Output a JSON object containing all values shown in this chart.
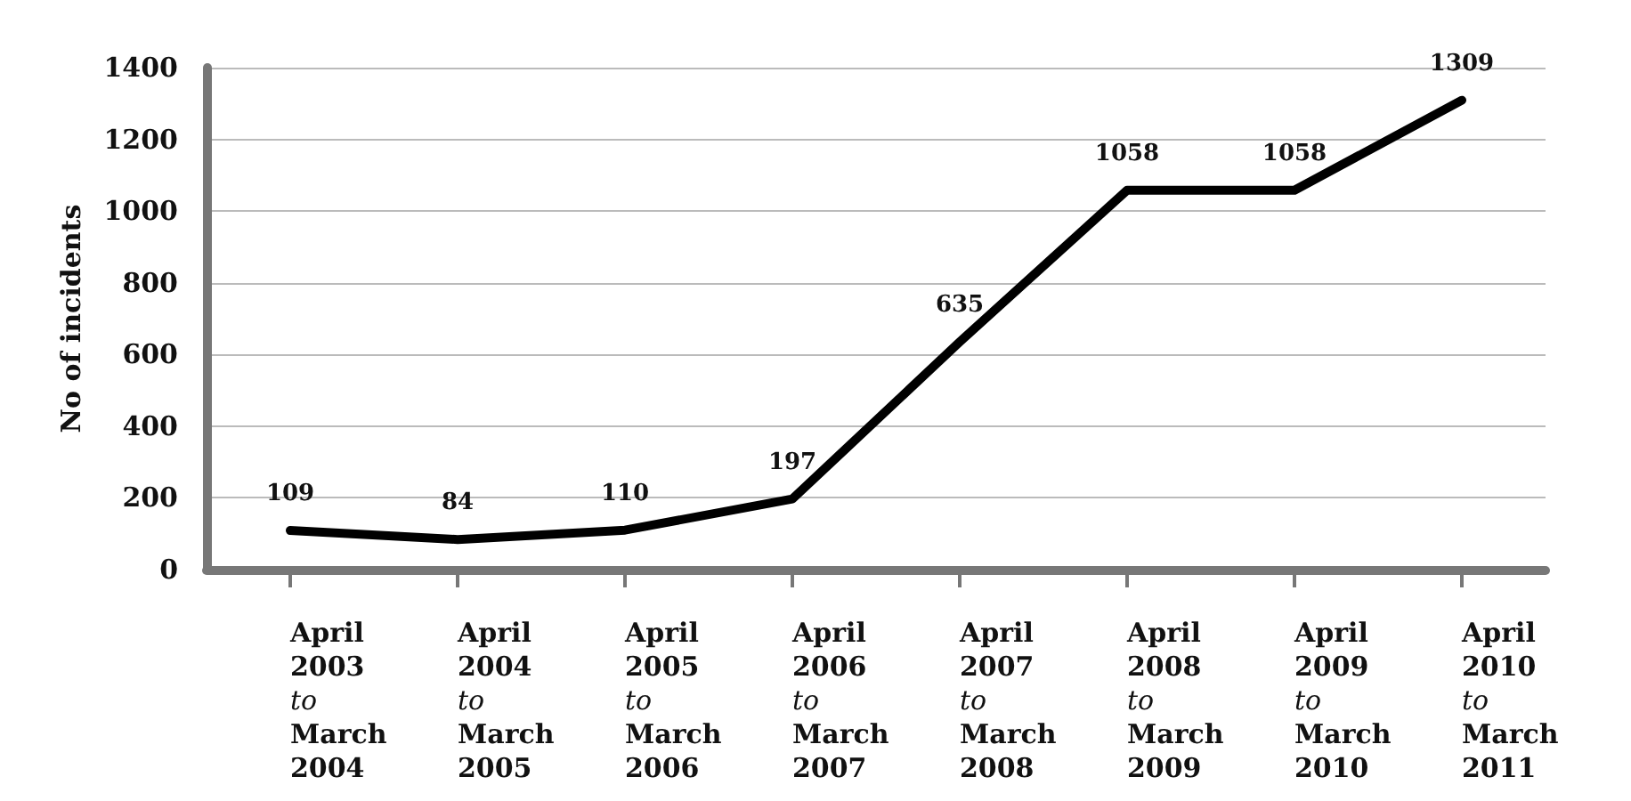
{
  "chart_data": {
    "type": "line",
    "ylabel": "No of incidents",
    "categories": [
      "April 2003 to March 2004",
      "April 2004 to March 2005",
      "April 2005 to March 2006",
      "April 2006 to March 2007",
      "April 2007 to March 2008",
      "April 2008 to March 2009",
      "April 2009 to March 2010",
      "April 2010 to March 2011"
    ],
    "series": [
      {
        "color": "#000000",
        "values": [
          109,
          84,
          110,
          197,
          635,
          1058,
          1058,
          1309
        ]
      }
    ],
    "ylim": [
      0,
      1400
    ],
    "yticks": [
      0,
      200,
      400,
      600,
      800,
      1000,
      1200,
      1400
    ],
    "grid": "y",
    "data_labels": true,
    "marker": "none",
    "line_style": "solid"
  }
}
